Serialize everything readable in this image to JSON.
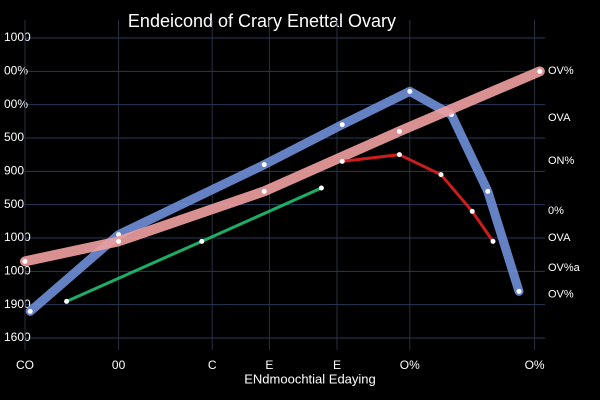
{
  "chart_data": {
    "type": "line",
    "title": "Endeicond of Crary Enettal Ovary",
    "x_label": "ENdmoochtial Edaying",
    "xlim": [
      0,
      10
    ],
    "xticks": [
      {
        "value": 0,
        "label": "CO"
      },
      {
        "value": 1.8,
        "label": "00"
      },
      {
        "value": 3.6,
        "label": "C"
      },
      {
        "value": 4.7,
        "label": "E"
      },
      {
        "value": 6,
        "label": "E"
      },
      {
        "value": 7.4,
        "label": "O%"
      },
      {
        "value": 9.8,
        "label": "O%"
      }
    ],
    "ylim": [
      0,
      9
    ],
    "yticks": [
      {
        "value": 0,
        "label": "1600"
      },
      {
        "value": 1,
        "label": "1900"
      },
      {
        "value": 2,
        "label": "1000"
      },
      {
        "value": 3,
        "label": "1000"
      },
      {
        "value": 4,
        "label": "500"
      },
      {
        "value": 5,
        "label": "900"
      },
      {
        "value": 6,
        "label": "500"
      },
      {
        "value": 7,
        "label": "00%"
      },
      {
        "value": 8,
        "label": "00%"
      },
      {
        "value": 9,
        "label": "1000"
      }
    ],
    "grid": true,
    "series": [
      {
        "color": "#6f8fd8",
        "x": [
          0.1,
          1.8,
          4.6,
          6.1,
          7.4,
          8.2,
          8.9,
          9.5
        ],
        "values": [
          0.8,
          3.1,
          5.2,
          6.4,
          7.4,
          6.7,
          4.4,
          1.4
        ]
      },
      {
        "color": "#f0a0a0",
        "x": [
          0,
          1.8,
          4.6,
          7.2,
          9.9
        ],
        "values": [
          2.3,
          2.9,
          4.4,
          6.2,
          8
        ]
      },
      {
        "color": "#e02020",
        "x": [
          6.1,
          7.2,
          8,
          8.6,
          9
        ],
        "values": [
          5.3,
          5.5,
          4.9,
          3.8,
          2.9
        ]
      },
      {
        "color": "#20c070",
        "x": [
          0.8,
          3.4,
          5.7
        ],
        "values": [
          1.1,
          2.9,
          4.5
        ]
      }
    ],
    "annotations": [
      {
        "text": "OV%",
        "y": 8
      },
      {
        "text": "OVA",
        "y": 6.6
      },
      {
        "text": "ON%",
        "y": 5.3
      },
      {
        "text": "0%",
        "y": 3.8
      },
      {
        "text": "OVA",
        "y": 3
      },
      {
        "text": "OV%a",
        "y": 2.1
      },
      {
        "text": "OV%",
        "y": 1.3
      }
    ]
  }
}
